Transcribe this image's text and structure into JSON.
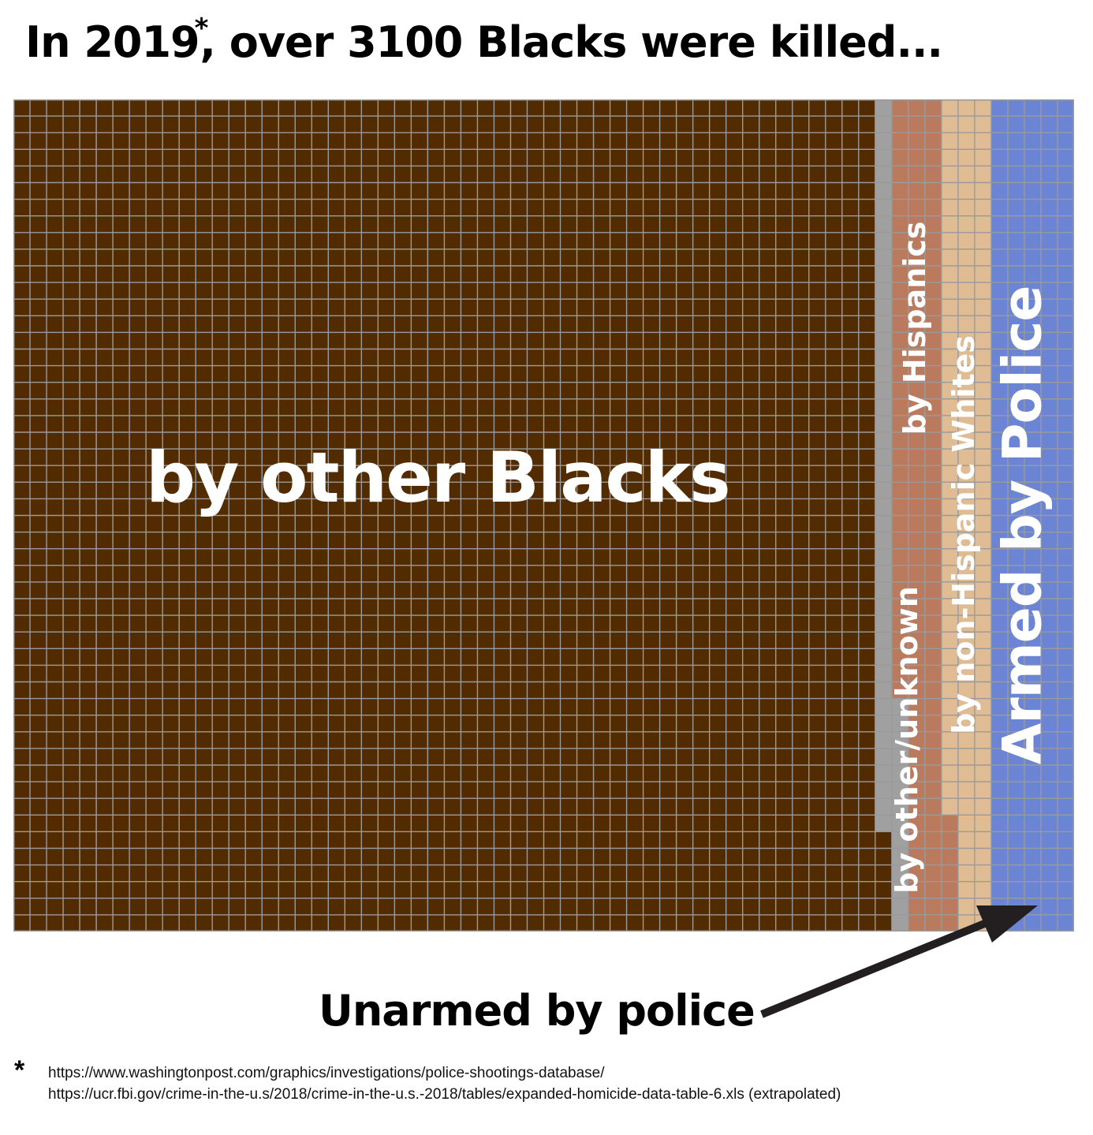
{
  "title": {
    "prefix": "In 2019",
    "marker": "*",
    "suffix": ", over 3100 Blacks were killed..."
  },
  "labels": {
    "by_other_blacks": "by other Blacks",
    "by_hispanics": "by Hispanics",
    "by_other_unknown": "by other/unknown",
    "by_non_hispanic_whites": "by non-Hispanic Whites",
    "armed_by_police": "Armed by Police",
    "unarmed_by_police": "Unarmed by police"
  },
  "footnote": {
    "marker": "*",
    "sources": [
      "https://www.washingtonpost.com/graphics/investigations/police-shootings-database/",
      "https://ucr.fbi.gov/crime-in-the-u.s/2018/crime-in-the-u.s.-2018/tables/expanded-homicide-data-table-6.xls (extrapolated)"
    ]
  },
  "chart_data": {
    "type": "waffle",
    "title": "In 2019, over 3100 Blacks were killed...",
    "grid": {
      "columns": 64,
      "rows": 50
    },
    "fill_order": "column-major, bottom-to-top",
    "series": [
      {
        "name": "by other Blacks",
        "cells": 2606,
        "color": "#532b00"
      },
      {
        "name": "by other/unknown",
        "cells": 58,
        "color": "#a0a0a0"
      },
      {
        "name": "by Hispanics",
        "cells": 143,
        "color": "#b97a5e"
      },
      {
        "name": "by non-Hispanic Whites",
        "cells": 143,
        "color": "#dfbc94"
      },
      {
        "name": "Armed by Police",
        "cells": 294,
        "color": "#6b85d4"
      },
      {
        "name": "Unarmed by police",
        "cells": 16,
        "color": "#d81f4a"
      }
    ],
    "gridline_color": "#9a9a9a",
    "annotation": {
      "text": "Unarmed by police",
      "points_to": "Unarmed by police"
    }
  }
}
